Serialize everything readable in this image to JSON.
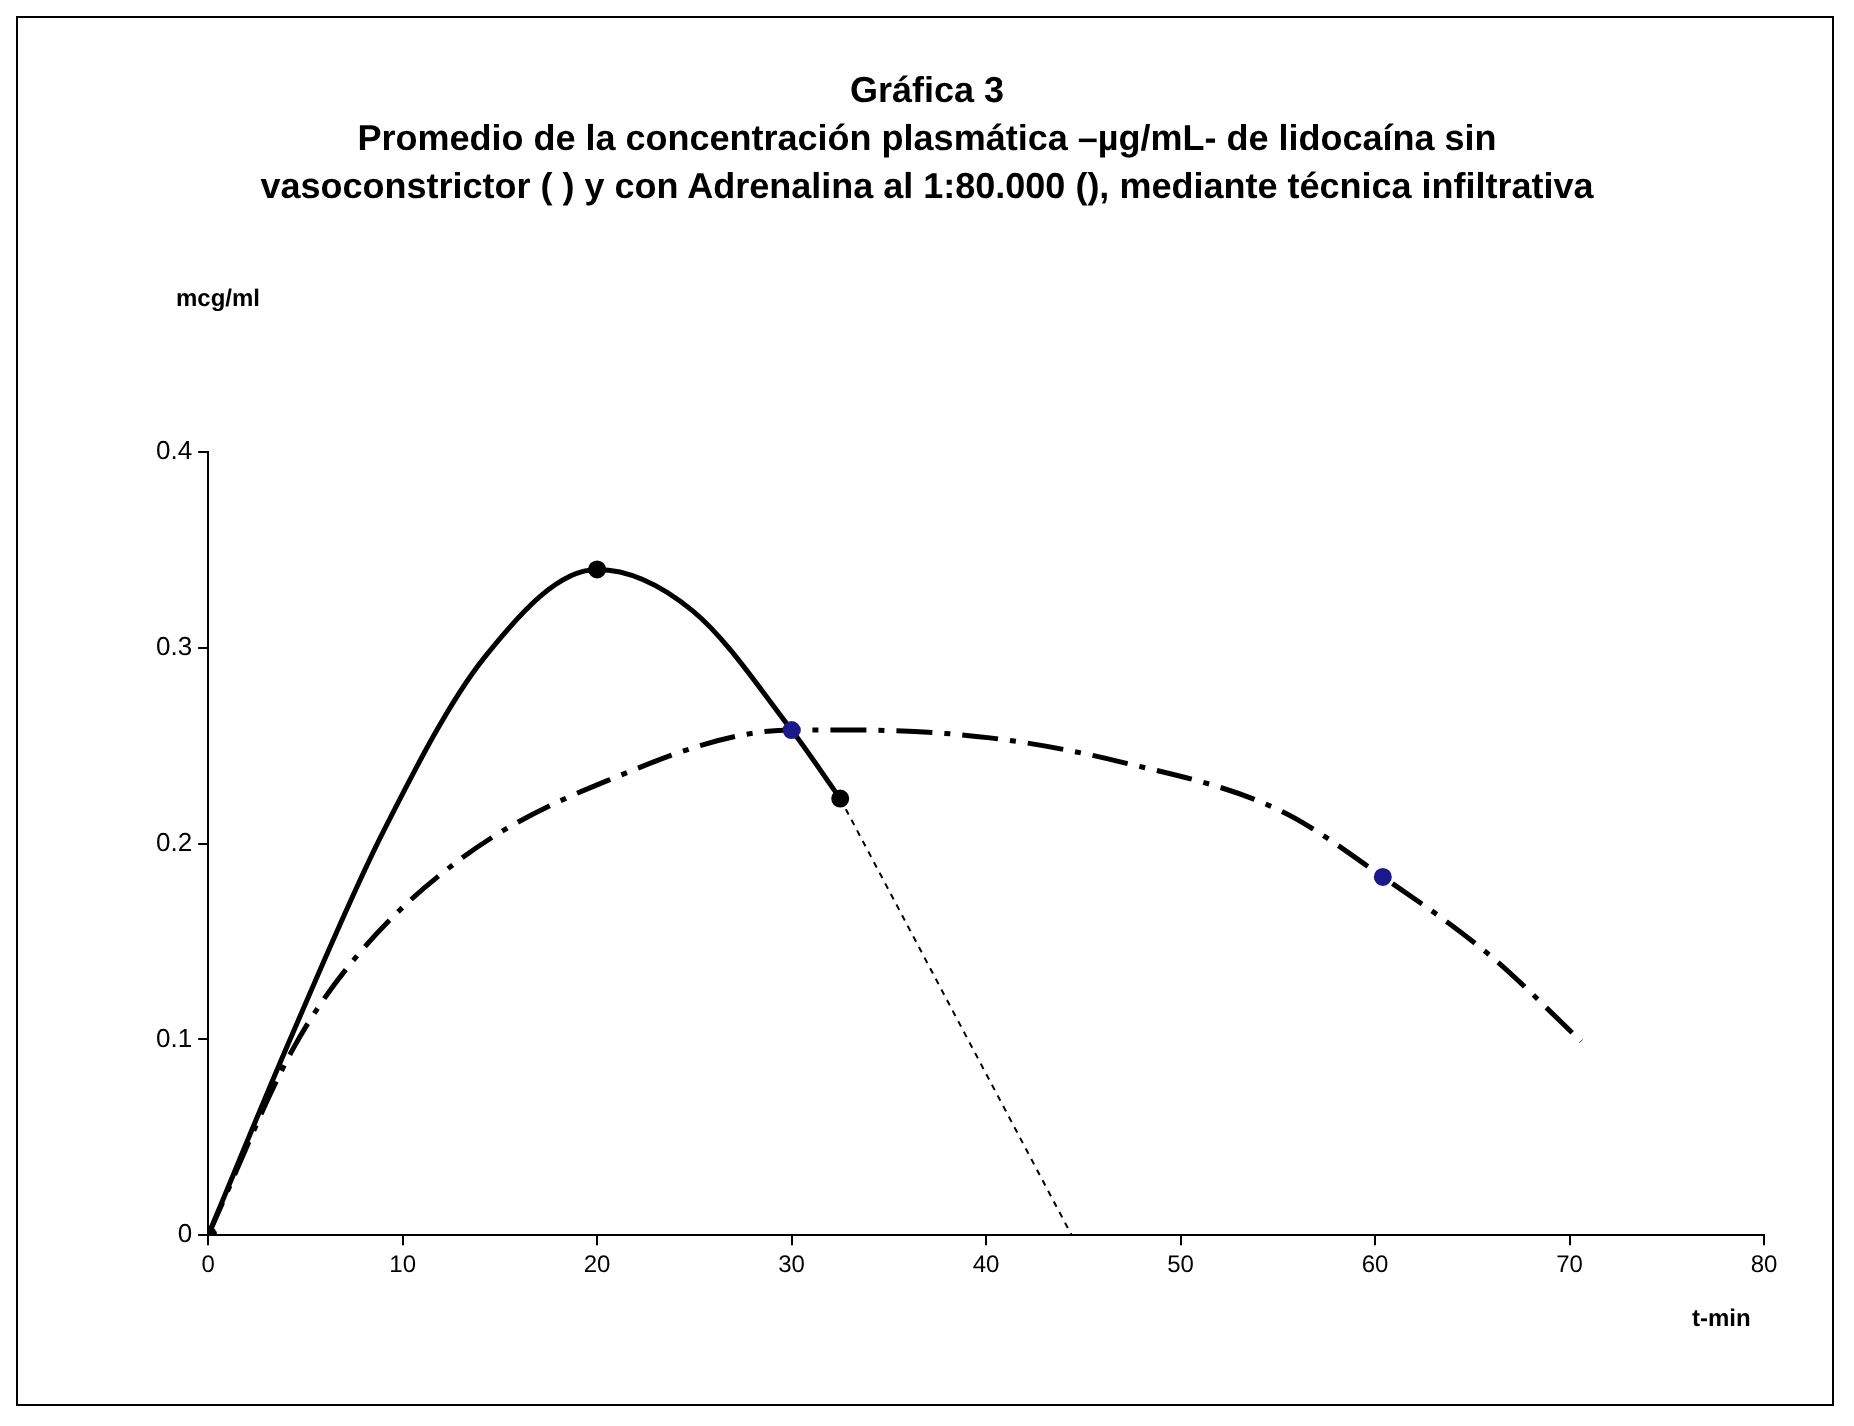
{
  "chart_data": {
    "type": "line",
    "title": "Gráfica 3",
    "subtitle": "Promedio de la concentración plasmática –µg/mL- de lidocaína sin\nvasoconstrictor ( ) y con Adrenalina al 1:80.000 (), mediante técnica infiltrativa",
    "xlabel": "t-min",
    "annotations": [
      "mcg/ml"
    ],
    "xlim": [
      0,
      80
    ],
    "xticks": [
      0,
      10,
      20,
      30,
      40,
      50,
      60,
      70,
      80
    ],
    "ylim": [
      0,
      0.4
    ],
    "yticks": [
      0,
      0.1,
      0.2,
      0.3,
      0.4
    ],
    "grid": false,
    "legend": false,
    "series": [
      {
        "type": "line",
        "color": "#000000",
        "line_style": "solid",
        "marker": "none",
        "x": [
          0,
          4.3,
          9,
          14.2,
          20,
          24.9,
          30,
          32.5
        ],
        "values": [
          0,
          0.102,
          0.206,
          0.295,
          0.34,
          0.319,
          0.258,
          0.223
        ]
      },
      {
        "type": "line",
        "color": "#000000",
        "line_style": "dotted",
        "marker": "none",
        "x": [
          32.5,
          44.4
        ],
        "values": [
          0.223,
          0
        ]
      },
      {
        "type": "line",
        "color": "#000000",
        "line_style": "dashed",
        "marker": "none",
        "x": [
          0,
          4.3,
          7.6,
          13.1,
          20,
          30,
          33.2,
          40.2,
          46.8,
          55.1,
          60.4,
          65.9,
          70.6
        ],
        "values": [
          0,
          0.094,
          0.142,
          0.193,
          0.23,
          0.258,
          0.258,
          0.254,
          0.242,
          0.217,
          0.183,
          0.143,
          0.099
        ]
      },
      {
        "type": "scatter",
        "color": "#000000",
        "marker": "circle",
        "x": [
          0,
          20,
          32.5
        ],
        "values": [
          0,
          0.34,
          0.223
        ]
      },
      {
        "type": "scatter",
        "color": "#1a1a8c",
        "marker": "circle",
        "x": [
          30,
          60.4
        ],
        "values": [
          0.258,
          0.183
        ]
      }
    ]
  }
}
